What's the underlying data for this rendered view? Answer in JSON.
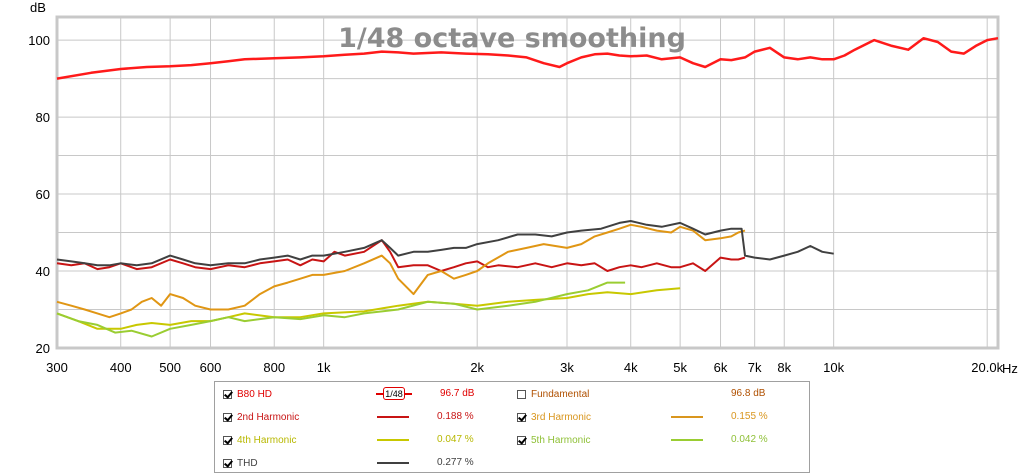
{
  "chart_data": {
    "type": "line",
    "title": "1/48 octave smoothing",
    "ylabel": "dB",
    "xunit": "Hz",
    "xscale": "log",
    "xlim": [
      300,
      21000
    ],
    "ylim": [
      20,
      106
    ],
    "grid": true,
    "x_ticks": [
      {
        "value": 300,
        "label": "300"
      },
      {
        "value": 400,
        "label": "400"
      },
      {
        "value": 500,
        "label": "500"
      },
      {
        "value": 600,
        "label": "600"
      },
      {
        "value": 800,
        "label": "800"
      },
      {
        "value": 1000,
        "label": "1k"
      },
      {
        "value": 2000,
        "label": "2k"
      },
      {
        "value": 3000,
        "label": "3k"
      },
      {
        "value": 4000,
        "label": "4k"
      },
      {
        "value": 5000,
        "label": "5k"
      },
      {
        "value": 6000,
        "label": "6k"
      },
      {
        "value": 7000,
        "label": "7k"
      },
      {
        "value": 8000,
        "label": "8k"
      },
      {
        "value": 10000,
        "label": "10k"
      },
      {
        "value": 20000,
        "label": "20.0k"
      }
    ],
    "y_ticks": [
      20,
      40,
      60,
      80,
      100
    ],
    "series": [
      {
        "name": "B80 HD",
        "color": "#ff1a1a",
        "x": [
          300,
          350,
          400,
          450,
          500,
          550,
          600,
          650,
          700,
          800,
          900,
          1000,
          1100,
          1200,
          1300,
          1400,
          1500,
          1700,
          1900,
          2100,
          2300,
          2500,
          2700,
          2900,
          3000,
          3200,
          3400,
          3600,
          3800,
          4000,
          4300,
          4600,
          5000,
          5300,
          5600,
          6000,
          6300,
          6700,
          7000,
          7500,
          8000,
          8500,
          9000,
          9500,
          10000,
          10500,
          11000,
          12000,
          13000,
          14000,
          15000,
          16000,
          17000,
          18000,
          19000,
          20000,
          21000
        ],
        "y": [
          90,
          91.5,
          92.5,
          93,
          93.2,
          93.5,
          94,
          94.5,
          95,
          95.3,
          95.5,
          95.8,
          96.2,
          96.5,
          97,
          96.8,
          96.5,
          96.8,
          96.5,
          96.3,
          96,
          95.5,
          94,
          93,
          94,
          95.5,
          96.3,
          96.5,
          96,
          95.8,
          96,
          95,
          95.5,
          94,
          93,
          95,
          94.8,
          95.5,
          97,
          98,
          95.5,
          95,
          95.5,
          95,
          95,
          96,
          97.5,
          100,
          98.5,
          97.5,
          100.5,
          99.5,
          97,
          96.5,
          98.5,
          100,
          100.5
        ]
      },
      {
        "name": "2nd Harmonic",
        "color": "#c81414",
        "x": [
          300,
          320,
          340,
          360,
          380,
          400,
          430,
          460,
          500,
          530,
          560,
          600,
          650,
          700,
          750,
          800,
          850,
          900,
          950,
          1000,
          1050,
          1100,
          1200,
          1300,
          1350,
          1400,
          1500,
          1600,
          1700,
          1800,
          1900,
          2000,
          2100,
          2200,
          2400,
          2600,
          2800,
          3000,
          3200,
          3400,
          3600,
          3800,
          4000,
          4200,
          4500,
          4800,
          5000,
          5300,
          5600,
          6000,
          6300,
          6500,
          6700
        ],
        "y": [
          42,
          41.5,
          42,
          40.5,
          41,
          42,
          40.5,
          41,
          43,
          42,
          41,
          40.5,
          41.5,
          41,
          42,
          42.5,
          43,
          41.5,
          43,
          42.5,
          45,
          44,
          45,
          48,
          45,
          41,
          41.5,
          41.5,
          40,
          41,
          42,
          42.5,
          41,
          41.5,
          41,
          42,
          41,
          42,
          41.5,
          42,
          40,
          41,
          41.5,
          41,
          42,
          41,
          41,
          42,
          40,
          43.5,
          43,
          43,
          43.5
        ]
      },
      {
        "name": "3rd Harmonic",
        "color": "#e09614",
        "x": [
          300,
          320,
          340,
          360,
          380,
          400,
          420,
          440,
          460,
          480,
          500,
          530,
          560,
          600,
          650,
          700,
          750,
          800,
          850,
          900,
          950,
          1000,
          1100,
          1200,
          1300,
          1350,
          1400,
          1500,
          1600,
          1700,
          1800,
          1900,
          2000,
          2100,
          2300,
          2500,
          2700,
          3000,
          3200,
          3400,
          3600,
          3800,
          4000,
          4200,
          4500,
          4800,
          5000,
          5300,
          5600,
          6000,
          6300,
          6500,
          6700
        ],
        "y": [
          32,
          31,
          30,
          29,
          28,
          29,
          30,
          32,
          33,
          31,
          34,
          33,
          31,
          30,
          30,
          31,
          34,
          36,
          37,
          38,
          39,
          39,
          40,
          42,
          44,
          42,
          38,
          34,
          39,
          40,
          38,
          39,
          40,
          42,
          45,
          46,
          47,
          46,
          47,
          49,
          50,
          51,
          52,
          51.5,
          50.5,
          50,
          51.5,
          50.5,
          48,
          48.5,
          49,
          50,
          50.5
        ]
      },
      {
        "name": "4th Harmonic",
        "color": "#c8c800",
        "x": [
          300,
          330,
          360,
          400,
          430,
          460,
          500,
          550,
          600,
          650,
          700,
          800,
          900,
          1000,
          1200,
          1400,
          1600,
          1800,
          2000,
          2300,
          2600,
          3000,
          3300,
          3600,
          4000,
          4500,
          5000
        ],
        "y": [
          29,
          27,
          25,
          25,
          26,
          26.5,
          26,
          27,
          27,
          28,
          29,
          28,
          28,
          29,
          29.5,
          31,
          32,
          31.5,
          31,
          32,
          32.5,
          33,
          34,
          34.5,
          34,
          35,
          35.5
        ]
      },
      {
        "name": "5th Harmonic",
        "color": "#9acd32",
        "x": [
          300,
          330,
          360,
          390,
          420,
          460,
          500,
          550,
          600,
          650,
          700,
          800,
          900,
          1000,
          1100,
          1200,
          1400,
          1600,
          1800,
          2000,
          2300,
          2600,
          3000,
          3300,
          3600,
          3900
        ],
        "y": [
          29,
          27,
          26,
          24,
          24.5,
          23,
          25,
          26,
          27,
          28,
          27,
          28,
          27.5,
          28.5,
          28,
          29,
          30,
          32,
          31.5,
          30,
          31,
          32,
          34,
          35,
          37,
          37
        ]
      },
      {
        "name": "THD",
        "color": "#404040",
        "x": [
          300,
          320,
          340,
          360,
          380,
          400,
          430,
          460,
          500,
          530,
          560,
          600,
          650,
          700,
          750,
          800,
          850,
          900,
          950,
          1000,
          1100,
          1200,
          1300,
          1350,
          1400,
          1500,
          1600,
          1700,
          1800,
          1900,
          2000,
          2200,
          2400,
          2600,
          2800,
          3000,
          3200,
          3500,
          3800,
          4000,
          4300,
          4600,
          5000,
          5300,
          5600,
          6000,
          6300,
          6600,
          6700,
          7000,
          7500,
          8000,
          8500,
          9000,
          9500,
          10000
        ],
        "y": [
          43,
          42.5,
          42,
          41.5,
          41.5,
          42,
          41.5,
          42,
          44,
          43,
          42,
          41.5,
          42,
          42,
          43,
          43.5,
          44,
          43,
          44,
          44,
          45,
          46,
          48,
          46,
          44,
          45,
          45,
          45.5,
          46,
          46,
          47,
          48,
          49.5,
          49.5,
          49,
          50,
          50.5,
          51,
          52.5,
          53,
          52,
          51.5,
          52.5,
          51,
          49.5,
          50.5,
          51,
          51,
          44,
          43.5,
          43,
          44,
          45,
          46.5,
          45,
          44.5
        ]
      }
    ]
  },
  "legend": {
    "rows": [
      [
        {
          "label": "B80 HD",
          "checked": true,
          "color": "#e00000",
          "value": "96.7 dB",
          "smoothing": "1/48"
        },
        {
          "label": "Fundamental",
          "checked": false,
          "color": "#b05000",
          "value": "96.8 dB"
        }
      ],
      [
        {
          "label": "2nd Harmonic",
          "checked": true,
          "color": "#c81414",
          "value": "0.188 %"
        },
        {
          "label": "3rd Harmonic",
          "checked": true,
          "color": "#d9961e",
          "value": "0.155 %"
        }
      ],
      [
        {
          "label": "4th Harmonic",
          "checked": true,
          "color": "#b8b800",
          "value": "0.047 %"
        },
        {
          "label": "5th Harmonic",
          "checked": true,
          "color": "#8fc037",
          "value": "0.042 %"
        }
      ],
      [
        {
          "label": "THD",
          "checked": true,
          "color": "#404040",
          "value": "0.277 %"
        }
      ]
    ]
  }
}
